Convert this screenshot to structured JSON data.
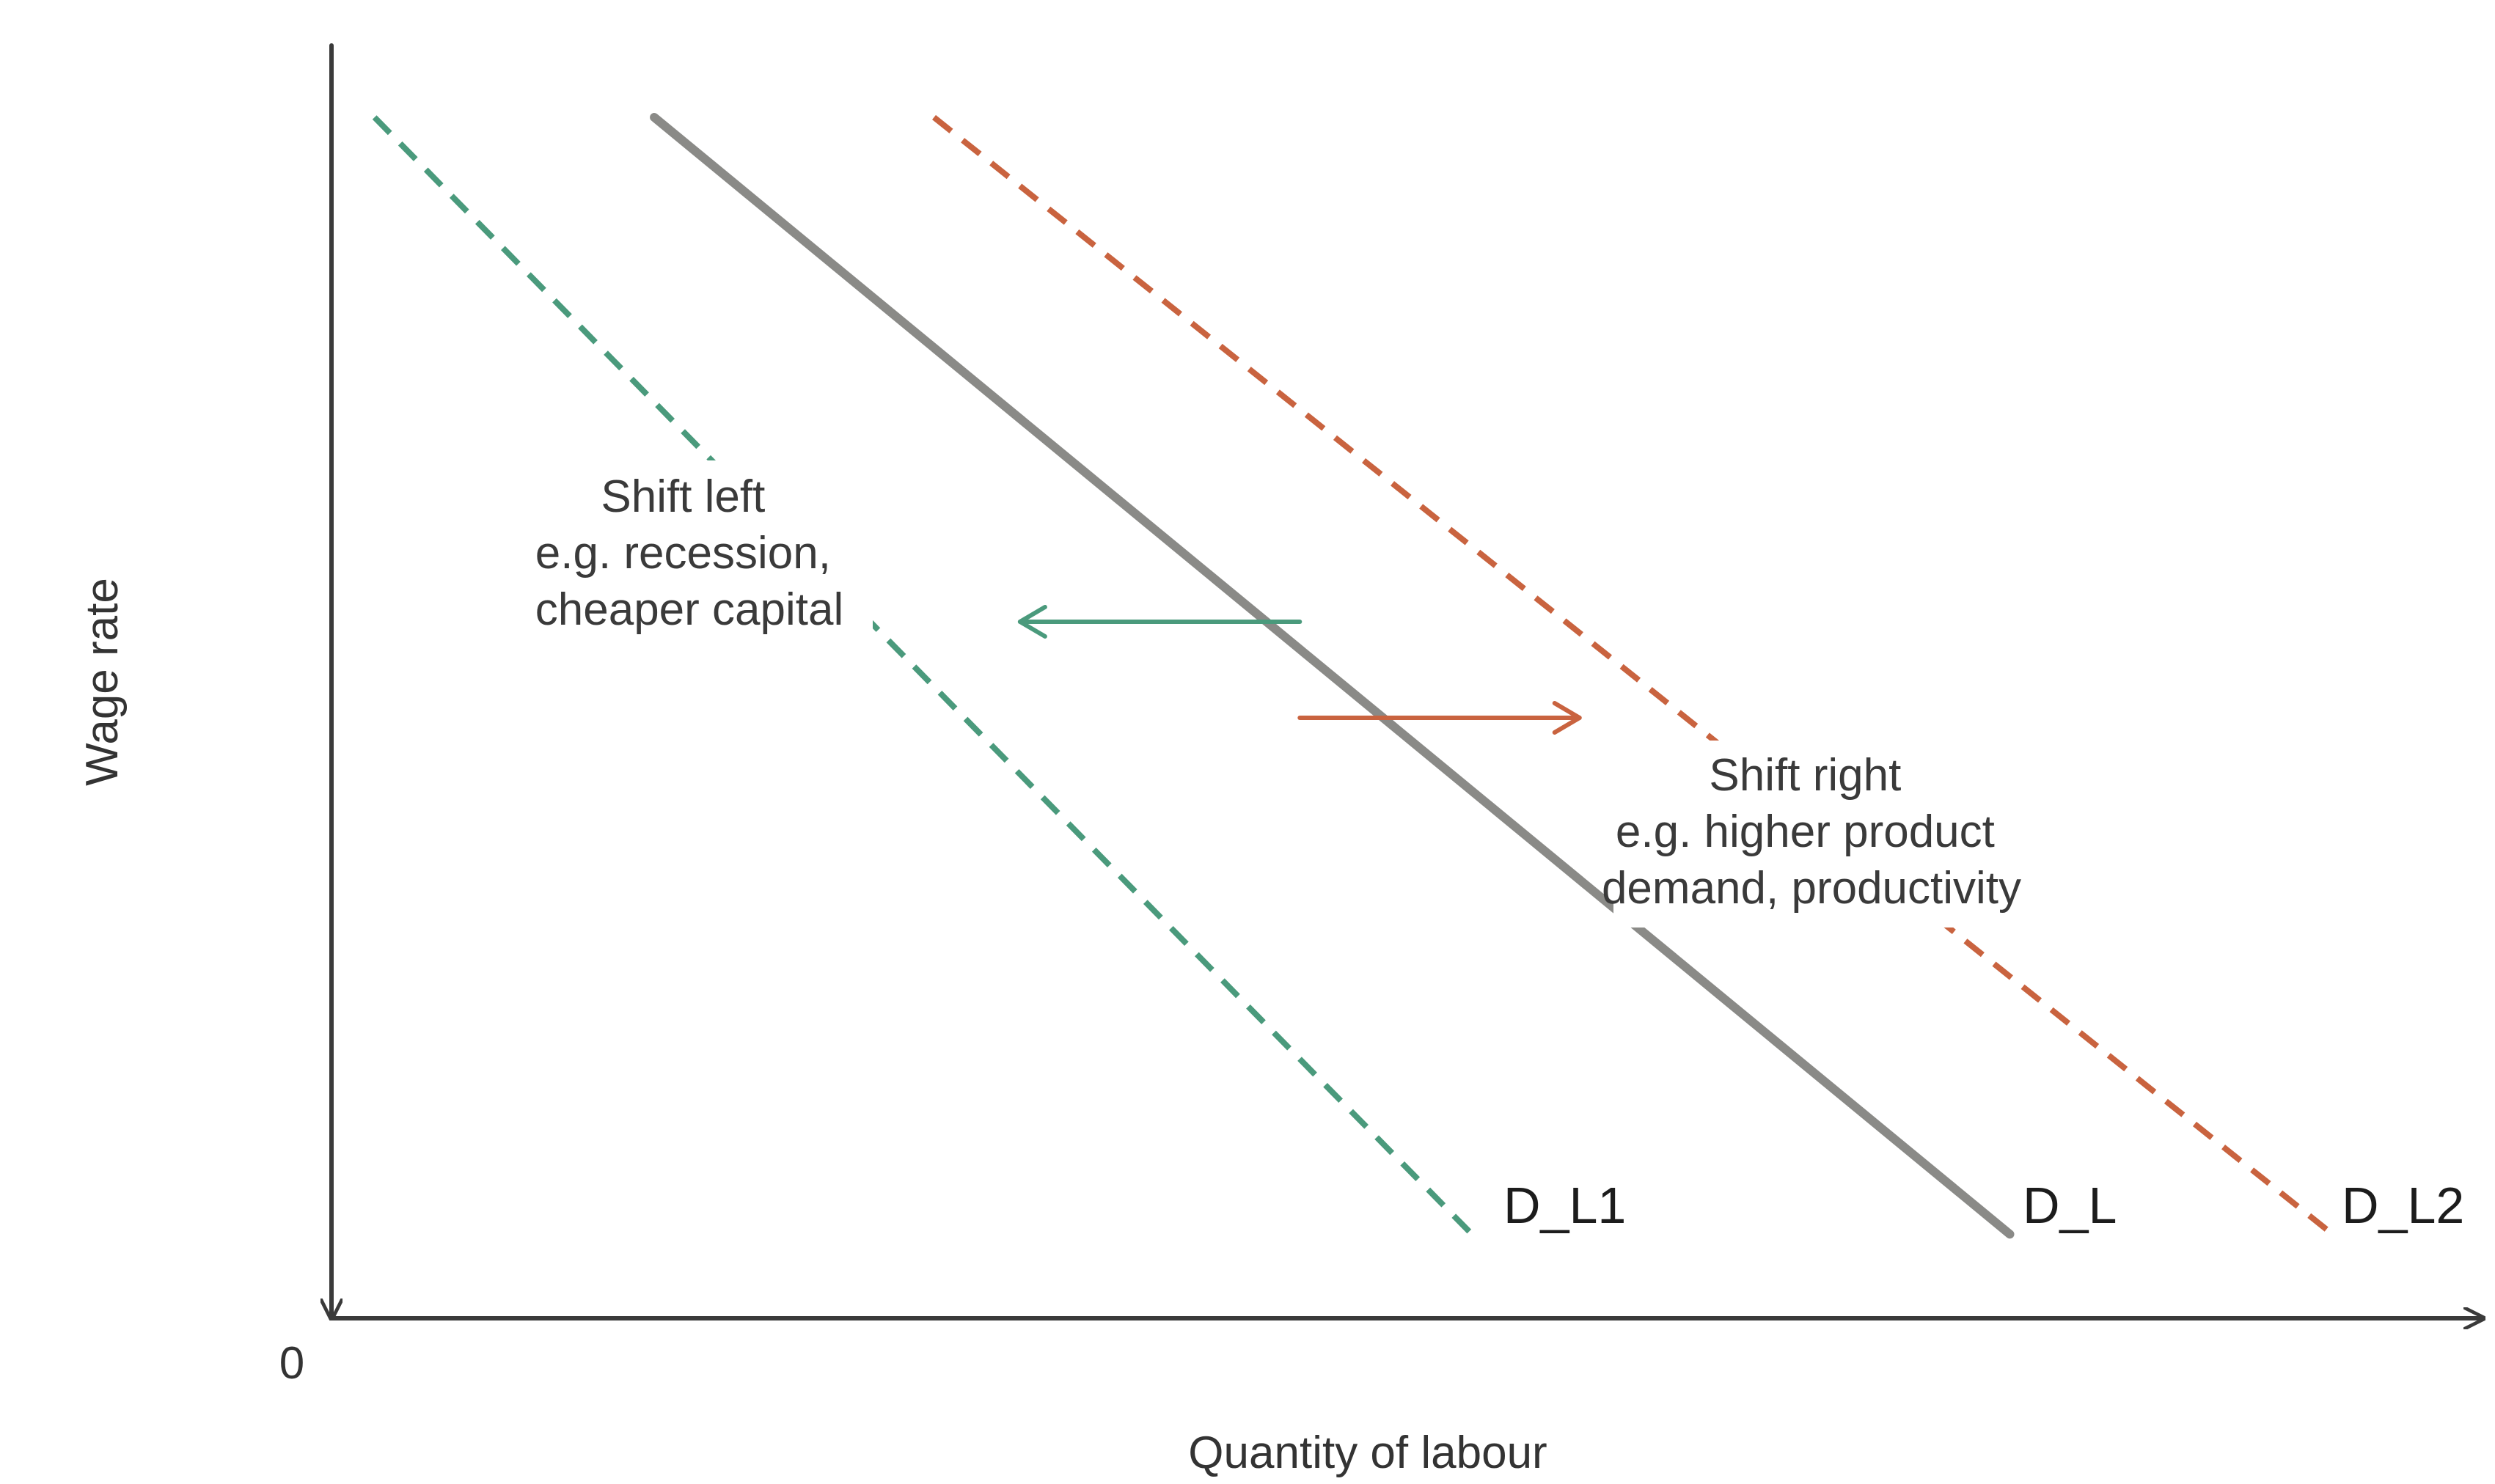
{
  "chart_data": {
    "type": "line",
    "title": "",
    "xlabel": "Quantity of labour",
    "ylabel": "Wage rate",
    "origin_label": "0",
    "xlim": [
      0,
      100
    ],
    "ylim": [
      0,
      100
    ],
    "grid": false,
    "series": [
      {
        "name": "D_L1",
        "style": "dashed",
        "color": "#4a9a7c",
        "points": [
          [
            2,
            100
          ],
          [
            53,
            7
          ]
        ]
      },
      {
        "name": "D_L",
        "style": "solid",
        "color": "#8a8a87",
        "points": [
          [
            15,
            100
          ],
          [
            78,
            7
          ]
        ]
      },
      {
        "name": "D_L2",
        "style": "dashed",
        "color": "#c9633f",
        "points": [
          [
            28,
            100
          ],
          [
            93,
            7
          ]
        ]
      }
    ],
    "annotations": [
      {
        "id": "shift-left",
        "lines": [
          "Shift left",
          "e.g. recession,",
          "cheaper capital"
        ],
        "color": "#4a9a7c",
        "arrow": {
          "from": [
            45,
            58
          ],
          "to": [
            32,
            58
          ]
        }
      },
      {
        "id": "shift-right",
        "lines": [
          "Shift right",
          "e.g. higher product",
          "demand, productivity"
        ],
        "color": "#c9633f",
        "arrow": {
          "from": [
            45,
            50
          ],
          "to": [
            58,
            50
          ]
        }
      }
    ]
  }
}
